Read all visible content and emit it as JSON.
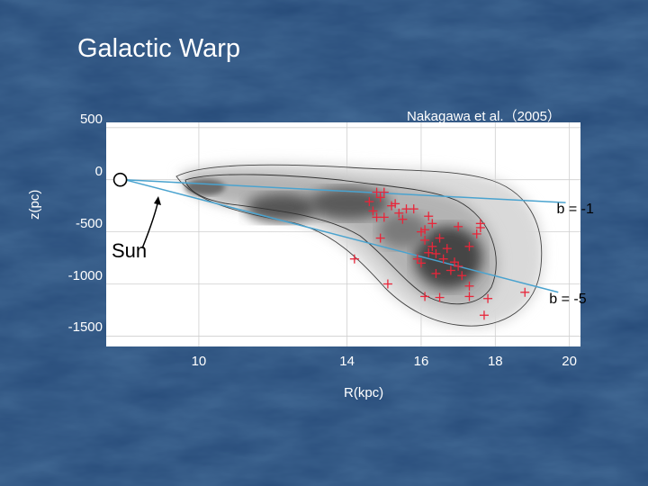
{
  "slide": {
    "title": "Galactic Warp",
    "source": "Nakagawa et al.（2005）",
    "bg_color": "#274a76"
  },
  "chart_data": {
    "type": "scatter",
    "title": "",
    "xlabel": "R(kpc)",
    "ylabel": "z(pc)",
    "xlim": [
      7.5,
      20.3
    ],
    "ylim": [
      -1600,
      550
    ],
    "x_ticks": [
      "10",
      "14",
      "16",
      "18",
      "20"
    ],
    "x_tick_values": [
      10,
      14,
      16,
      18,
      20
    ],
    "y_ticks": [
      "500",
      "0",
      "-500",
      "-1000",
      "-1500"
    ],
    "y_tick_values": [
      500,
      0,
      -500,
      -1000,
      -1500
    ],
    "grid": true,
    "sun": {
      "label": "Sun",
      "x": 8.0,
      "z": 0
    },
    "lines": [
      {
        "label": "b = -1",
        "x": [
          8.0,
          19.9
        ],
        "z": [
          0,
          -220
        ]
      },
      {
        "label": "b = -5",
        "x": [
          8.0,
          19.7
        ],
        "z": [
          0,
          -1080
        ]
      }
    ],
    "points_color": "#e8263a",
    "points": [
      [
        14.8,
        -120
      ],
      [
        14.9,
        -170
      ],
      [
        15.0,
        -120
      ],
      [
        15.3,
        -230
      ],
      [
        15.6,
        -280
      ],
      [
        15.4,
        -320
      ],
      [
        14.6,
        -210
      ],
      [
        14.7,
        -300
      ],
      [
        14.8,
        -360
      ],
      [
        15.0,
        -360
      ],
      [
        15.2,
        -250
      ],
      [
        15.5,
        -380
      ],
      [
        15.8,
        -280
      ],
      [
        16.2,
        -350
      ],
      [
        16.3,
        -420
      ],
      [
        16.1,
        -480
      ],
      [
        16.0,
        -500
      ],
      [
        16.1,
        -580
      ],
      [
        16.3,
        -640
      ],
      [
        16.2,
        -700
      ],
      [
        15.9,
        -760
      ],
      [
        16.0,
        -800
      ],
      [
        16.5,
        -560
      ],
      [
        16.6,
        -760
      ],
      [
        16.9,
        -790
      ],
      [
        17.0,
        -830
      ],
      [
        16.8,
        -870
      ],
      [
        16.4,
        -900
      ],
      [
        17.3,
        -640
      ],
      [
        17.5,
        -520
      ],
      [
        17.6,
        -460
      ],
      [
        17.6,
        -420
      ],
      [
        17.0,
        -450
      ],
      [
        17.1,
        -920
      ],
      [
        17.3,
        -1020
      ],
      [
        17.3,
        -1120
      ],
      [
        17.8,
        -1140
      ],
      [
        16.5,
        -1130
      ],
      [
        16.1,
        -1120
      ],
      [
        18.8,
        -1080
      ],
      [
        17.7,
        -1300
      ],
      [
        16.4,
        -710
      ],
      [
        15.1,
        -1000
      ],
      [
        14.2,
        -760
      ],
      [
        14.9,
        -560
      ],
      [
        16.7,
        -660
      ]
    ]
  }
}
